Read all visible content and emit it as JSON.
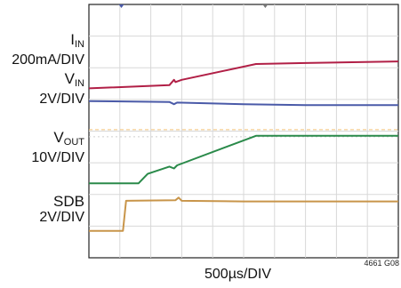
{
  "chart_data": {
    "type": "line",
    "title": "",
    "xlabel": "500µs/DIV",
    "figure_id": "4661 G08",
    "grid": true,
    "divisions": {
      "x": 10,
      "y": 8
    },
    "xlim": [
      0,
      10
    ],
    "series": [
      {
        "key": "iin",
        "name_main": "I",
        "name_sub": "IN",
        "scale": "200mA/DIV",
        "color": "#b11f46",
        "points": [
          [
            0,
            5.35
          ],
          [
            2.6,
            5.45
          ],
          [
            2.75,
            5.62
          ],
          [
            2.8,
            5.55
          ],
          [
            3.0,
            5.62
          ],
          [
            5.4,
            6.12
          ],
          [
            7.0,
            6.15
          ],
          [
            10,
            6.2
          ]
        ]
      },
      {
        "key": "vin",
        "name_main": "V",
        "name_sub": "IN",
        "scale": "2V/DIV",
        "color": "#4a5aa8",
        "points": [
          [
            0,
            4.95
          ],
          [
            2.6,
            4.92
          ],
          [
            2.75,
            4.85
          ],
          [
            2.85,
            4.9
          ],
          [
            5,
            4.85
          ],
          [
            7,
            4.82
          ],
          [
            10,
            4.82
          ]
        ]
      },
      {
        "key": "vout",
        "name_main": "V",
        "name_sub": "OUT",
        "scale": "10V/DIV",
        "color": "#2a8a4a",
        "points": [
          [
            0,
            2.35
          ],
          [
            1.6,
            2.35
          ],
          [
            1.9,
            2.65
          ],
          [
            2.6,
            2.88
          ],
          [
            2.75,
            2.82
          ],
          [
            2.85,
            2.92
          ],
          [
            5.4,
            3.85
          ],
          [
            10,
            3.85
          ]
        ]
      },
      {
        "key": "sdb",
        "name_main": "SDB",
        "name_sub": "",
        "scale": "2V/DIV",
        "color": "#c8954a",
        "points": [
          [
            0,
            0.85
          ],
          [
            1.1,
            0.85
          ],
          [
            1.2,
            1.8
          ],
          [
            2.8,
            1.82
          ],
          [
            2.9,
            1.9
          ],
          [
            3.0,
            1.8
          ],
          [
            5,
            1.78
          ],
          [
            10,
            1.78
          ]
        ]
      }
    ]
  }
}
